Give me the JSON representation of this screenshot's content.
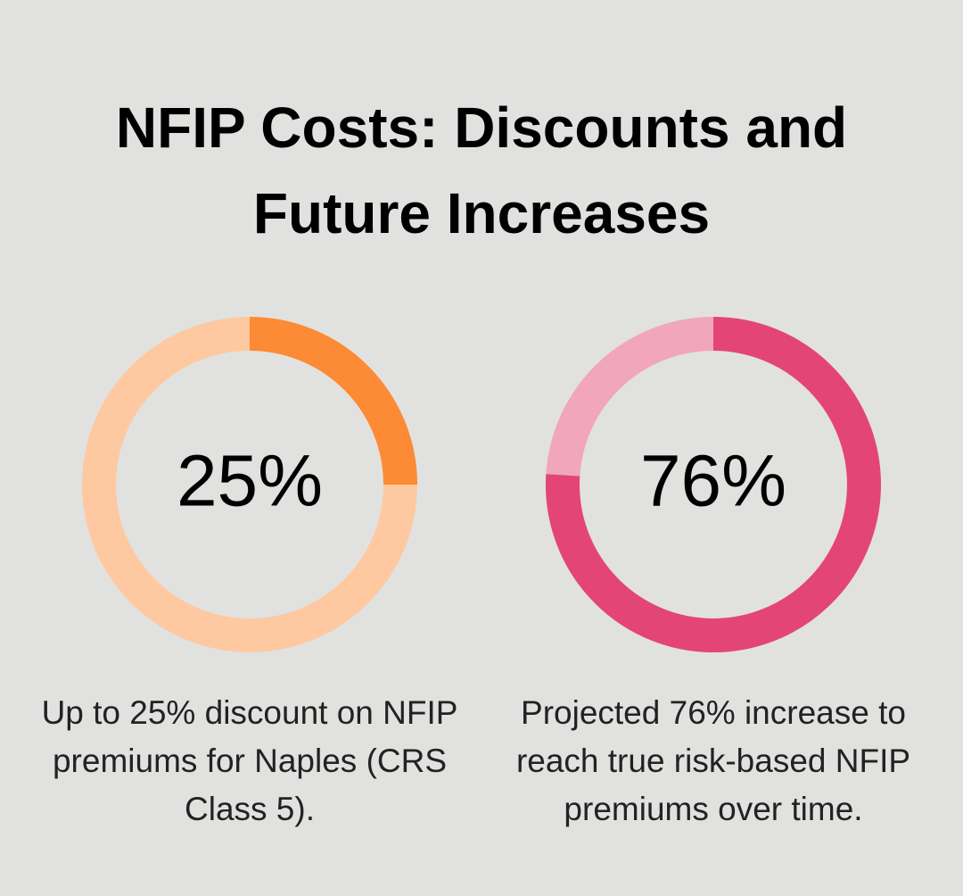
{
  "title": "NFIP Costs: Discounts and Future Increases",
  "chart_data": [
    {
      "type": "donut",
      "values": [
        25
      ],
      "value_labels": [
        "25%"
      ],
      "color": "#fd8a35",
      "track_color": "#fec9a1",
      "description": "Up to 25% discount on NFIP premiums for Naples (CRS Class 5)."
    },
    {
      "type": "donut",
      "values": [
        76
      ],
      "value_labels": [
        "76%"
      ],
      "color": "#e44577",
      "track_color": "#f1a6bd",
      "description": "Projected 76% increase to reach true risk-based NFIP premiums over time."
    }
  ]
}
